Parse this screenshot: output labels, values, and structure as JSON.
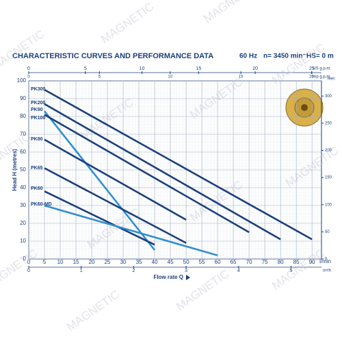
{
  "chart_data": {
    "type": "line",
    "title": "CHARACTERISTIC CURVES AND PERFORMANCE DATA",
    "annotations": [
      "60 Hz",
      "n= 3450 min⁻¹",
      "HS= 0 m"
    ],
    "watermark": "MAGNETIC",
    "xlabel": "Flow rate Q",
    "xunit": "l/min",
    "ylabel": "Head H (metres)",
    "xlim": [
      0,
      93
    ],
    "xticks": [
      0,
      5,
      10,
      15,
      20,
      25,
      30,
      35,
      40,
      45,
      50,
      55,
      60,
      65,
      70,
      75,
      80,
      85,
      90
    ],
    "ylim": [
      0,
      100
    ],
    "yticks": [
      0,
      10,
      20,
      30,
      40,
      50,
      60,
      70,
      80,
      90,
      100
    ],
    "grid": true,
    "secondary_axes": [
      {
        "position": "top",
        "label": "US g.p.m.",
        "lim": [
          0,
          25.85
        ],
        "ticks": [
          0,
          5,
          10,
          15,
          20,
          25
        ]
      },
      {
        "position": "top",
        "label": "Imp g.p.m.",
        "lim": [
          0,
          20.7
        ],
        "ticks": [
          0,
          5,
          10,
          15,
          20
        ]
      },
      {
        "position": "bottom",
        "label": "m³/h",
        "lim": [
          0,
          5.58
        ],
        "ticks": [
          0,
          1,
          2,
          3,
          4,
          5
        ]
      },
      {
        "position": "right",
        "label": "feet",
        "lim": [
          0,
          328
        ],
        "ticks": [
          0,
          50,
          100,
          150,
          200,
          250,
          300
        ]
      }
    ],
    "series": [
      {
        "name": "PK300",
        "color": "#1b3f7c",
        "x": [
          5,
          90
        ],
        "values": [
          95,
          11
        ]
      },
      {
        "name": "PK200",
        "color": "#1b3f7c",
        "x": [
          5,
          80
        ],
        "values": [
          87,
          11
        ]
      },
      {
        "name": "PK90",
        "color": "#2f8fd0",
        "x": [
          5,
          40
        ],
        "values": [
          83,
          5
        ]
      },
      {
        "name": "PK100",
        "color": "#1b3f7c",
        "x": [
          5,
          70
        ],
        "values": [
          81,
          15
        ]
      },
      {
        "name": "PK80",
        "color": "#1b3f7c",
        "x": [
          5,
          50
        ],
        "values": [
          67,
          22
        ]
      },
      {
        "name": "PK65",
        "color": "#1b3f7c",
        "x": [
          5,
          50
        ],
        "values": [
          51,
          9
        ]
      },
      {
        "name": "PK60",
        "color": "#1b3f7c",
        "x": [
          5,
          40
        ],
        "values": [
          38,
          8
        ]
      },
      {
        "name": "PK60-MD",
        "color": "#2f8fd0",
        "x": [
          5,
          60
        ],
        "values": [
          30,
          2
        ]
      }
    ]
  }
}
